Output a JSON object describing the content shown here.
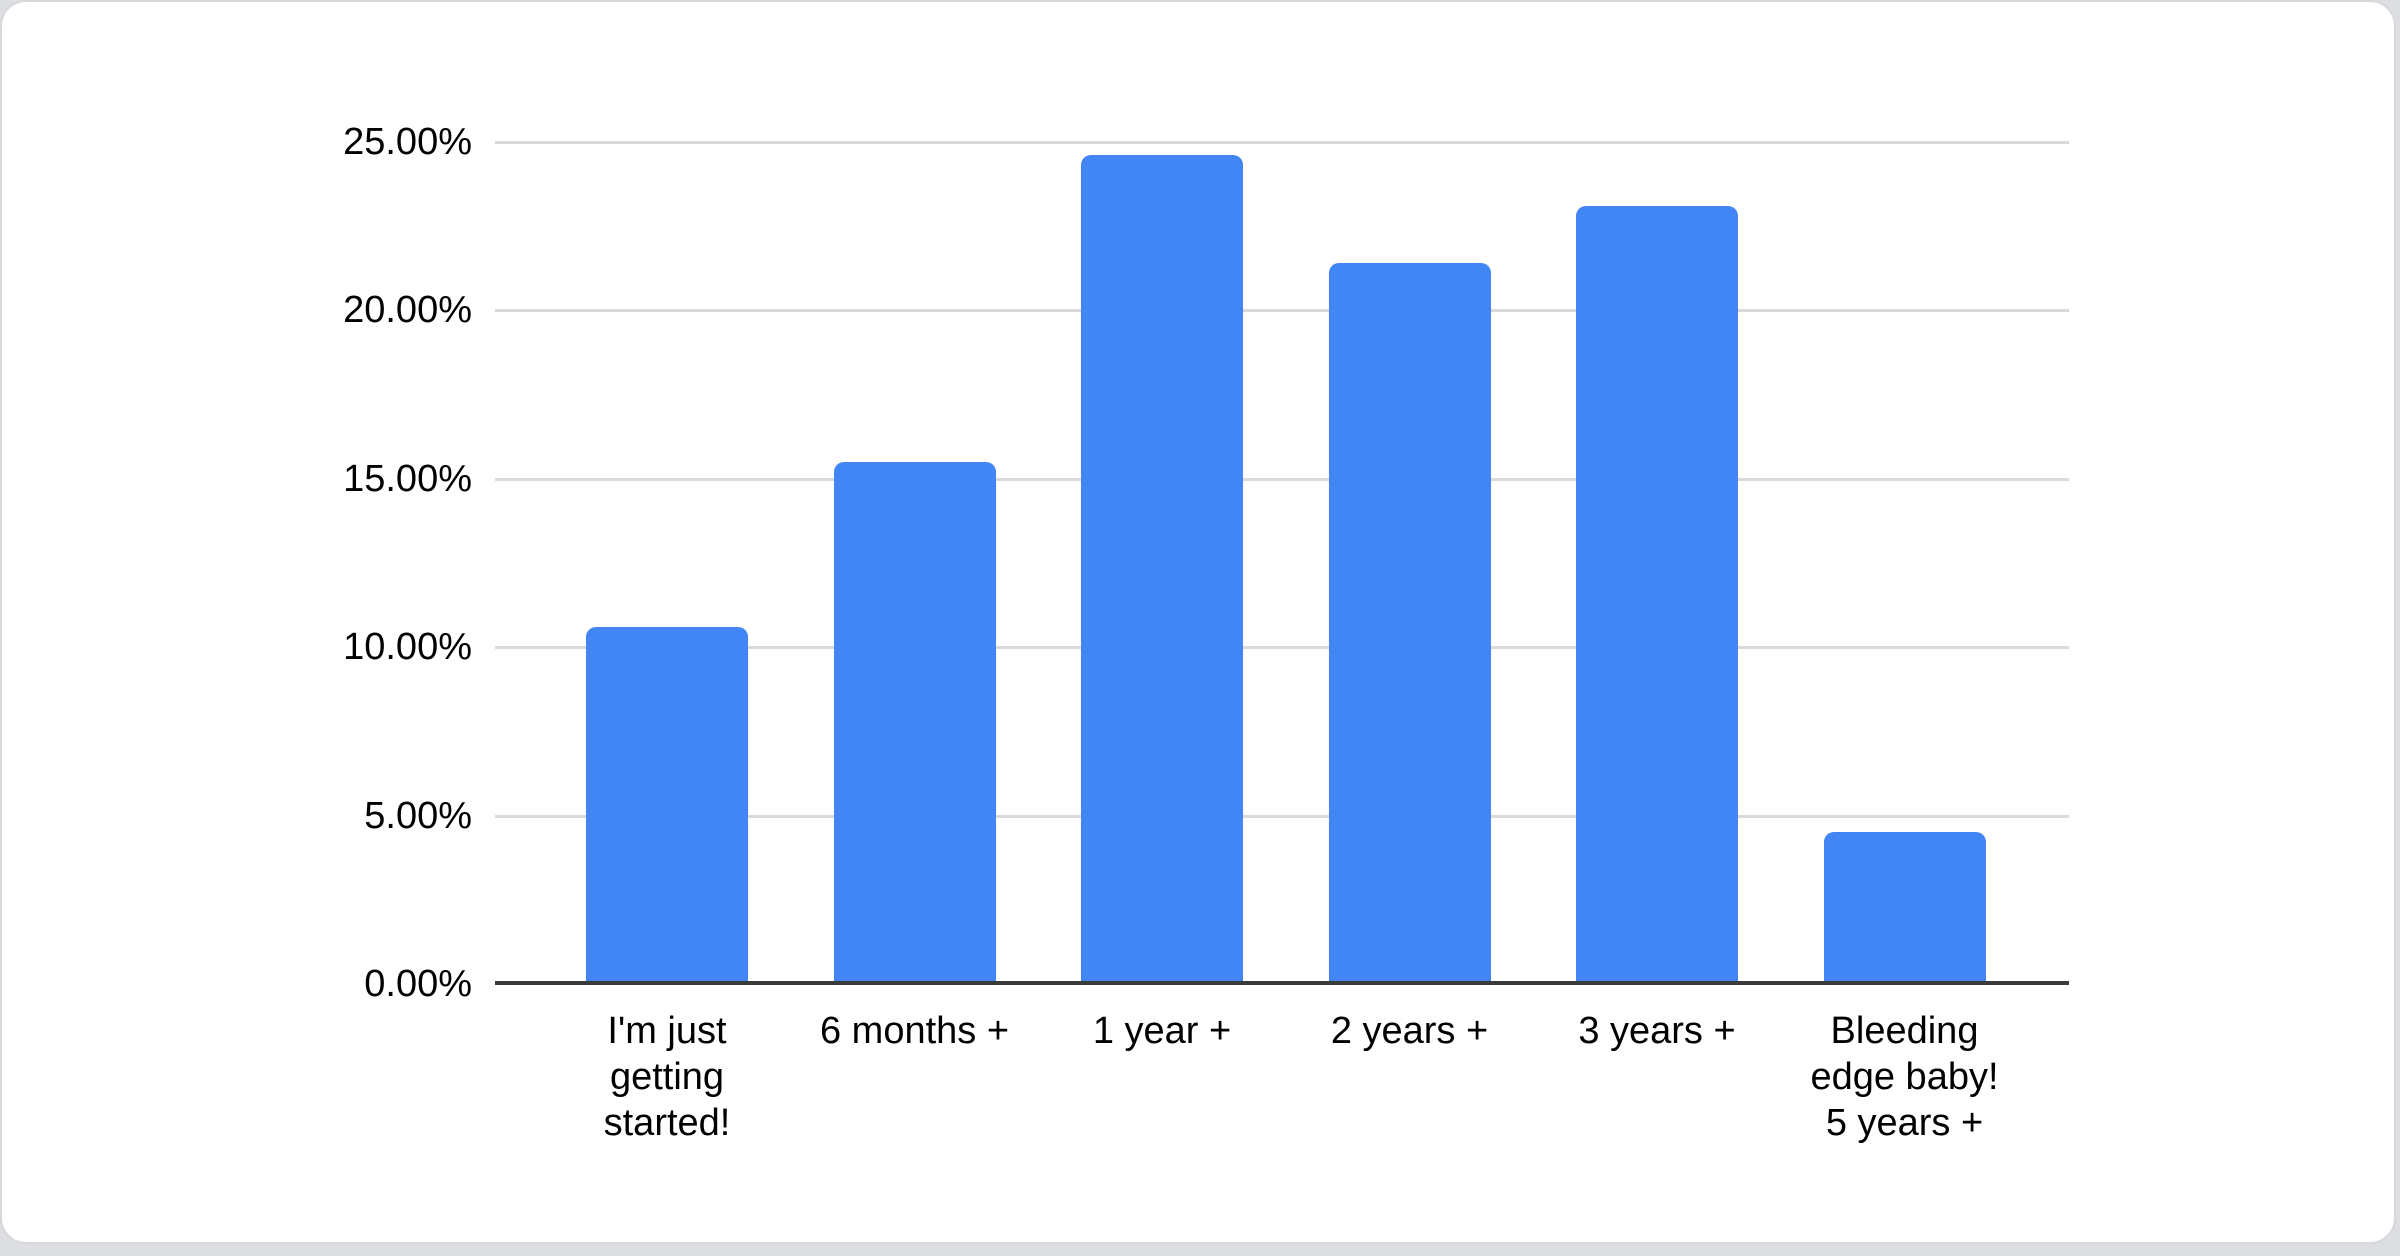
{
  "card": {
    "background": "#ffffff",
    "border_color": "#d6d8db",
    "page_background": "#dcdee1"
  },
  "chart_data": {
    "type": "bar",
    "title": "",
    "xlabel": "",
    "ylabel": "",
    "categories": [
      "I'm just getting started!",
      "6 months +",
      "1 year +",
      "2 years +",
      "3 years +",
      "Bleeding edge baby! 5 years +"
    ],
    "category_lines": [
      [
        "I'm just",
        "getting",
        "started!"
      ],
      [
        "6 months +"
      ],
      [
        "1 year +"
      ],
      [
        "2 years +"
      ],
      [
        "3 years +"
      ],
      [
        "Bleeding",
        "edge baby!",
        "5 years +"
      ]
    ],
    "values": [
      10.6,
      15.5,
      24.6,
      21.4,
      23.1,
      4.5
    ],
    "ylim": [
      0,
      25
    ],
    "yticks": [
      {
        "value": 0,
        "label": "0.00%"
      },
      {
        "value": 5,
        "label": "5.00%"
      },
      {
        "value": 10,
        "label": "10.00%"
      },
      {
        "value": 15,
        "label": "15.00%"
      },
      {
        "value": 20,
        "label": "20.00%"
      },
      {
        "value": 25,
        "label": "25.00%"
      }
    ],
    "grid": true,
    "legend": "none",
    "bar_color": "#4285f4",
    "gridline_color": "#d9d9d9",
    "axis_line_color": "#3b3b3b",
    "text_color": "#000000"
  }
}
